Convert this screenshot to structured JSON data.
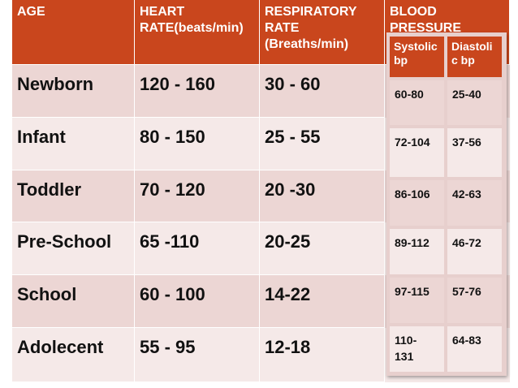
{
  "headers": {
    "age": "AGE",
    "heart_rate": "HEART RATE(beats/min)",
    "respiratory_rate": "RESPIRATORY RATE (Breaths/min)",
    "blood_pressure": "BLOOD PRESSURE",
    "systolic": "Systolic bp",
    "diastolic": "Diastoli c bp"
  },
  "rows": [
    {
      "age": "Newborn",
      "hr": "120 - 160",
      "rr": "30 - 60",
      "sys": "60-80",
      "dia": "25-40"
    },
    {
      "age": "Infant",
      "hr": "80 - 150",
      "rr": "25 - 55",
      "sys": "72-104",
      "dia": "37-56"
    },
    {
      "age": "Toddler",
      "hr": "70 - 120",
      "rr": "20 -30",
      "sys": "86-106",
      "dia": "42-63"
    },
    {
      "age": "Pre-School",
      "hr": "65 -110",
      "rr": "20-25",
      "sys": "89-112",
      "dia": "46-72"
    },
    {
      "age": "School",
      "hr": "60 - 100",
      "rr": "14-22",
      "sys": "97-115",
      "dia": "57-76"
    },
    {
      "age": "Adolecent",
      "hr": "55 - 95",
      "rr": "12-18",
      "sys": "110- 131",
      "dia": "64-83"
    }
  ],
  "colors": {
    "header": "#c9461d",
    "row_dark": "#ecd6d4",
    "row_light": "#f5e9e8"
  }
}
